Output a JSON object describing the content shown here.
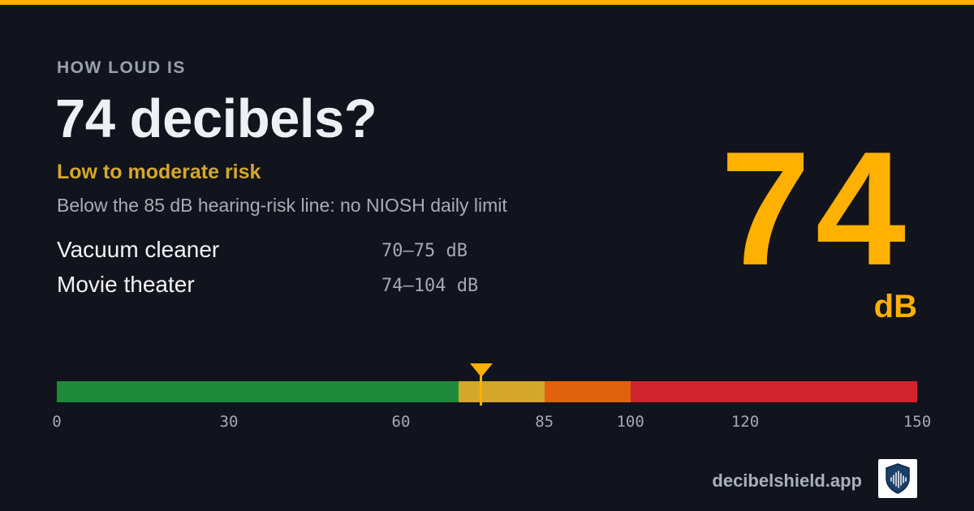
{
  "eyebrow": "HOW LOUD IS",
  "title": "74 decibels?",
  "risk_label": "Low to moderate risk",
  "description": "Below the 85 dB hearing-risk line: no NIOSH daily limit",
  "comparisons": [
    {
      "name": "Vacuum cleaner",
      "range": "70–75 dB"
    },
    {
      "name": "Movie theater",
      "range": "74–104 dB"
    }
  ],
  "level": {
    "value": "74",
    "unit": "dB"
  },
  "scale": {
    "min": 0,
    "max": 150,
    "marker_value": 74,
    "ticks": [
      "0",
      "30",
      "60",
      "85",
      "100",
      "120",
      "150"
    ],
    "segments": [
      {
        "from": 0,
        "to": 70,
        "color": "#1f8a3b"
      },
      {
        "from": 70,
        "to": 85,
        "color": "#d4a72c"
      },
      {
        "from": 85,
        "to": 100,
        "color": "#e0620f"
      },
      {
        "from": 100,
        "to": 150,
        "color": "#d0232e"
      }
    ],
    "marker_color": "#ffb000"
  },
  "brand": "decibelshield.app",
  "colors": {
    "accent": "#ffb000",
    "background": "#11141c",
    "risk": "#d4a72c"
  },
  "logo_icon": "shield-soundwave-icon"
}
